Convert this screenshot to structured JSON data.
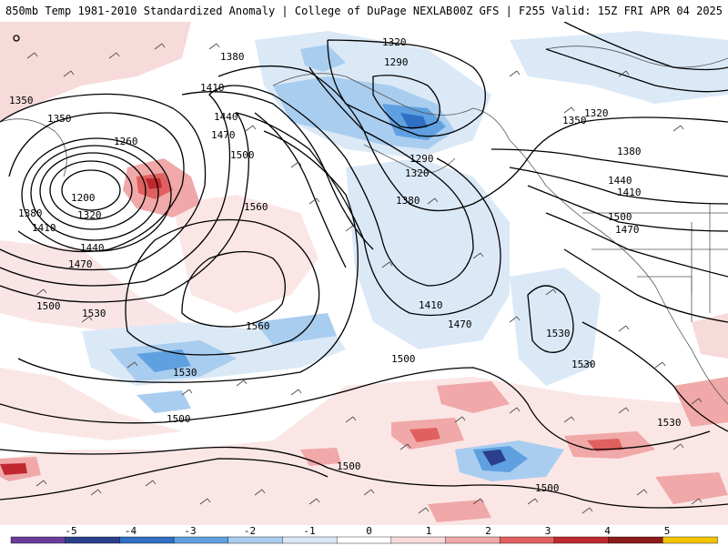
{
  "header": {
    "left_title": "850mb Temp 1981-2010 Standardized Anomaly | College of DuPage NEXLAB",
    "right_title": "00Z GFS | F255 Valid: 15Z FRI APR 04 2025"
  },
  "contour_labels": [
    {
      "text": "1320"
    },
    {
      "text": "1290"
    },
    {
      "text": "1380"
    },
    {
      "text": "1410"
    },
    {
      "text": "1440"
    },
    {
      "text": "1470"
    },
    {
      "text": "1500"
    },
    {
      "text": "1350"
    },
    {
      "text": "1350"
    },
    {
      "text": "1260"
    },
    {
      "text": "1200"
    },
    {
      "text": "1320"
    },
    {
      "text": "1380"
    },
    {
      "text": "1410"
    },
    {
      "text": "1440"
    },
    {
      "text": "1470"
    },
    {
      "text": "1500"
    },
    {
      "text": "1530"
    },
    {
      "text": "1560"
    },
    {
      "text": "1560"
    },
    {
      "text": "1530"
    },
    {
      "text": "1500"
    },
    {
      "text": "1500"
    },
    {
      "text": "1410"
    },
    {
      "text": "1470"
    },
    {
      "text": "1500"
    },
    {
      "text": "1530"
    },
    {
      "text": "1530"
    },
    {
      "text": "1530"
    },
    {
      "text": "1500"
    },
    {
      "text": "1290"
    },
    {
      "text": "1320"
    },
    {
      "text": "1380"
    },
    {
      "text": "1350"
    },
    {
      "text": "1320"
    },
    {
      "text": "1380"
    },
    {
      "text": "1440"
    },
    {
      "text": "1410"
    },
    {
      "text": "1500"
    },
    {
      "text": "1470"
    },
    {
      "text": "1500"
    }
  ],
  "colorbar": {
    "ticks": [
      "-5",
      "-4",
      "-3",
      "-2",
      "-1",
      "0",
      "1",
      "2",
      "3",
      "4",
      "5"
    ],
    "colors": [
      "#6a3d9a",
      "#2b3f8c",
      "#2f6fc4",
      "#5fa0e0",
      "#a9cdef",
      "#dbe9f7",
      "#ffffff",
      "#f7dada",
      "#f0a8a8",
      "#e06060",
      "#c0282f",
      "#8c1a1a",
      "#f5c400"
    ]
  }
}
